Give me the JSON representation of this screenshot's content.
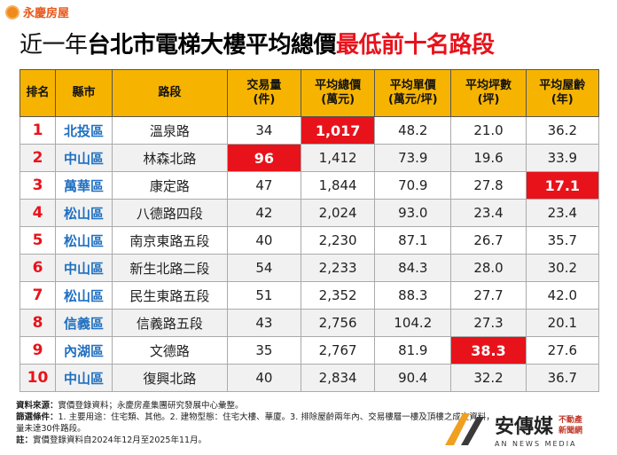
{
  "brand": "永慶房屋",
  "title": {
    "part1": "近一年",
    "part2": "台北市電梯大樓平均總價",
    "part3": "最低前十名路段"
  },
  "table": {
    "headers": [
      [
        "排名"
      ],
      [
        "縣市"
      ],
      [
        "路段"
      ],
      [
        "交易量",
        "(件)"
      ],
      [
        "平均總價",
        "(萬元)"
      ],
      [
        "平均單價",
        "(萬元/坪)"
      ],
      [
        "平均坪數",
        "(坪)"
      ],
      [
        "平均屋齡",
        "(年)"
      ]
    ],
    "rows": [
      [
        "1",
        "北投區",
        "溫泉路",
        "34",
        "1,017",
        "48.2",
        "21.0",
        "36.2"
      ],
      [
        "2",
        "中山區",
        "林森北路",
        "96",
        "1,412",
        "73.9",
        "19.6",
        "33.9"
      ],
      [
        "3",
        "萬華區",
        "康定路",
        "47",
        "1,844",
        "70.9",
        "27.8",
        "17.1"
      ],
      [
        "4",
        "松山區",
        "八德路四段",
        "42",
        "2,024",
        "93.0",
        "23.4",
        "23.4"
      ],
      [
        "5",
        "松山區",
        "南京東路五段",
        "40",
        "2,230",
        "87.1",
        "26.7",
        "35.7"
      ],
      [
        "6",
        "中山區",
        "新生北路二段",
        "54",
        "2,233",
        "84.3",
        "28.0",
        "30.2"
      ],
      [
        "7",
        "松山區",
        "民生東路五段",
        "51",
        "2,352",
        "88.3",
        "27.7",
        "42.0"
      ],
      [
        "8",
        "信義區",
        "信義路五段",
        "43",
        "2,756",
        "104.2",
        "27.3",
        "20.1"
      ],
      [
        "9",
        "內湖區",
        "文德路",
        "35",
        "2,767",
        "81.9",
        "38.3",
        "27.6"
      ],
      [
        "10",
        "中山區",
        "復興北路",
        "40",
        "2,834",
        "90.4",
        "32.2",
        "36.7"
      ]
    ],
    "highlight": [
      4,
      3,
      7,
      null,
      null,
      null,
      null,
      null,
      6,
      null
    ]
  },
  "notes": [
    {
      "label": "資料來源：",
      "text": "實價登錄資料；永慶房產集團研究發展中心彙整。"
    },
    {
      "label": "篩選條件：",
      "text": "1. 主要用途：住宅類、其他。2. 建物型態：住宅大樓、華廈。3. 排除屋齡兩年內、交易樓層一樓及頂樓之成交資料，"
    },
    {
      "label": "",
      "text": "量未達30件路段。"
    },
    {
      "label": "註：",
      "text": "實價登錄資料自2024年12月至2025年11月。"
    }
  ],
  "footer_logo": {
    "name": "安傳媒",
    "sub1": "不動產",
    "sub2": "新聞網",
    "en": "AN NEWS MEDIA"
  }
}
